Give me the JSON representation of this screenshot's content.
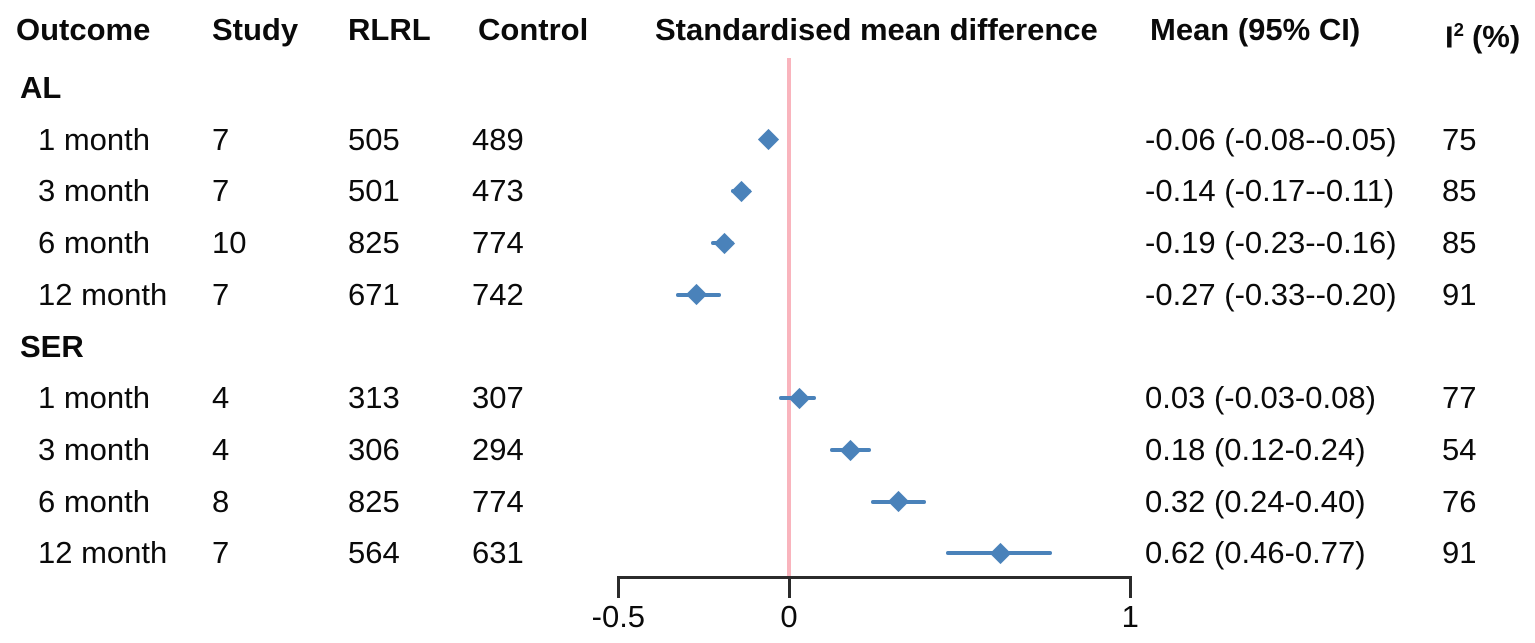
{
  "header": {
    "outcome": "Outcome",
    "study": "Study",
    "rlrl": "RLRL",
    "control": "Control",
    "smd": "Standardised mean difference",
    "mean_ci": "Mean (95% CI)",
    "i2_base": "I",
    "i2_sup": "2",
    "i2_rest": "(%)"
  },
  "colors": {
    "marker_blue": "#4a82ba",
    "zero_line_pink": "#f9b4bd",
    "axis_black": "#2b2b2b",
    "text": "#0a0a0a"
  },
  "chart_data": {
    "type": "forest",
    "title": "",
    "xlabel": "Standardised mean difference",
    "xlim": [
      -0.5,
      1
    ],
    "x_ticks": [
      {
        "value": -0.5,
        "label": "-0.5"
      },
      {
        "value": 0,
        "label": "0"
      },
      {
        "value": 1,
        "label": "1"
      }
    ],
    "zero_line_value": 0,
    "columns": [
      "Outcome",
      "Study",
      "RLRL",
      "Control",
      "Standardised mean difference",
      "Mean (95% CI)",
      "I2 (%)"
    ],
    "groups": [
      {
        "label": "AL",
        "rows": [
          {
            "outcome": "1 month",
            "study": "7",
            "rlrl": "505",
            "control": "489",
            "mean": -0.06,
            "ci_low": -0.08,
            "ci_high": -0.05,
            "mean_ci": "-0.06 (-0.08--0.05)",
            "i2": "75"
          },
          {
            "outcome": "3 month",
            "study": "7",
            "rlrl": "501",
            "control": "473",
            "mean": -0.14,
            "ci_low": -0.17,
            "ci_high": -0.11,
            "mean_ci": "-0.14 (-0.17--0.11)",
            "i2": "85"
          },
          {
            "outcome": "6 month",
            "study": "10",
            "rlrl": "825",
            "control": "774",
            "mean": -0.19,
            "ci_low": -0.23,
            "ci_high": -0.16,
            "mean_ci": "-0.19 (-0.23--0.16)",
            "i2": "85"
          },
          {
            "outcome": "12 month",
            "study": "7",
            "rlrl": "671",
            "control": "742",
            "mean": -0.27,
            "ci_low": -0.33,
            "ci_high": -0.2,
            "mean_ci": "-0.27 (-0.33--0.20)",
            "i2": "91"
          }
        ]
      },
      {
        "label": "SER",
        "rows": [
          {
            "outcome": "1 month",
            "study": "4",
            "rlrl": "313",
            "control": "307",
            "mean": 0.03,
            "ci_low": -0.03,
            "ci_high": 0.08,
            "mean_ci": "0.03 (-0.03-0.08)",
            "i2": "77"
          },
          {
            "outcome": "3 month",
            "study": "4",
            "rlrl": "306",
            "control": "294",
            "mean": 0.18,
            "ci_low": 0.12,
            "ci_high": 0.24,
            "mean_ci": "0.18 (0.12-0.24)",
            "i2": "54"
          },
          {
            "outcome": "6 month",
            "study": "8",
            "rlrl": "825",
            "control": "774",
            "mean": 0.32,
            "ci_low": 0.24,
            "ci_high": 0.4,
            "mean_ci": "0.32 (0.24-0.40)",
            "i2": "76"
          },
          {
            "outcome": "12 month",
            "study": "7",
            "rlrl": "564",
            "control": "631",
            "mean": 0.62,
            "ci_low": 0.46,
            "ci_high": 0.77,
            "mean_ci": "0.62 (0.46-0.77)",
            "i2": "91"
          }
        ]
      }
    ]
  }
}
